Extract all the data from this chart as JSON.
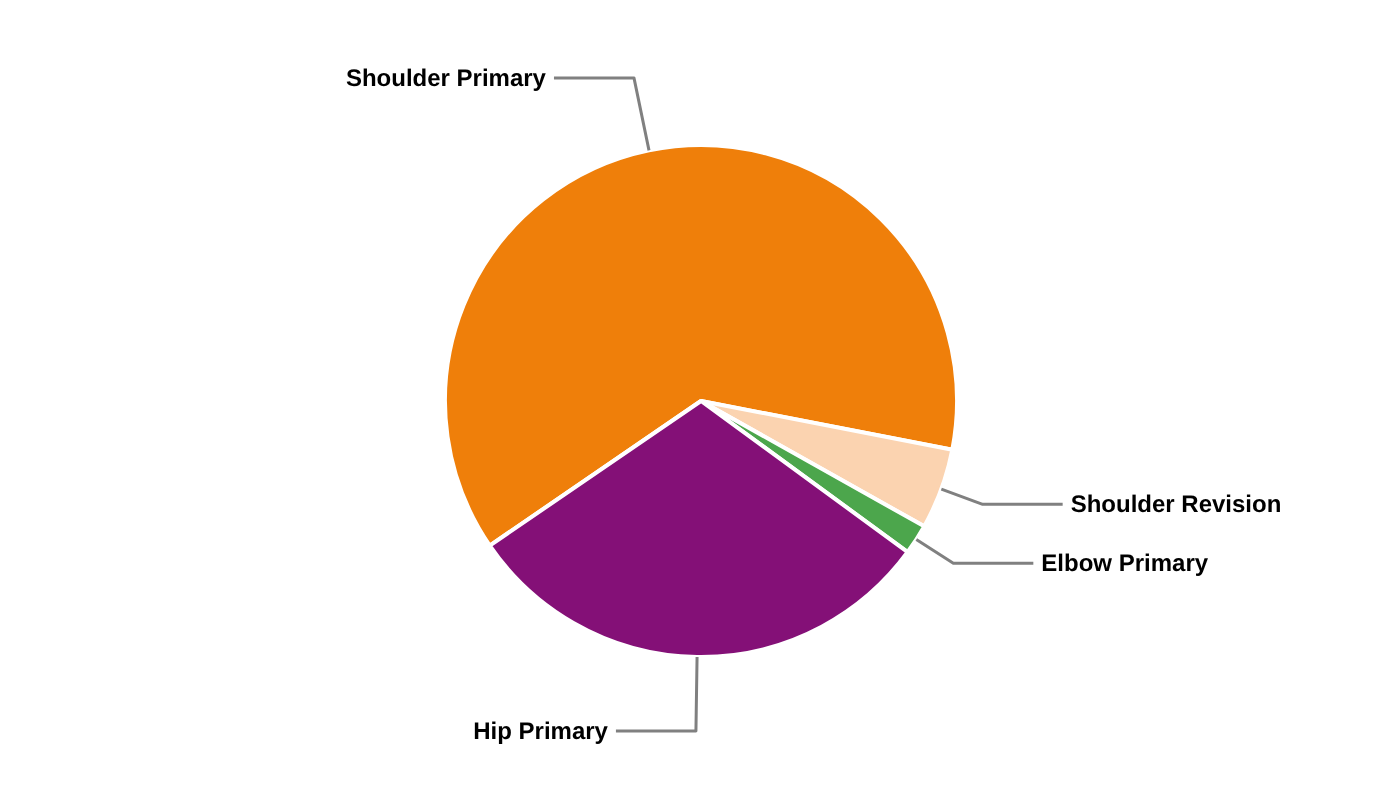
{
  "chart_data": {
    "type": "pie",
    "categories": [
      "Shoulder Primary",
      "Shoulder Revision",
      "Elbow Primary",
      "Hip Primary"
    ],
    "values": [
      62.6,
      5.1,
      1.9,
      30.4
    ],
    "colors": [
      "#ef7f0a",
      "#fbd3b0",
      "#4ca64c",
      "#841077"
    ]
  }
}
